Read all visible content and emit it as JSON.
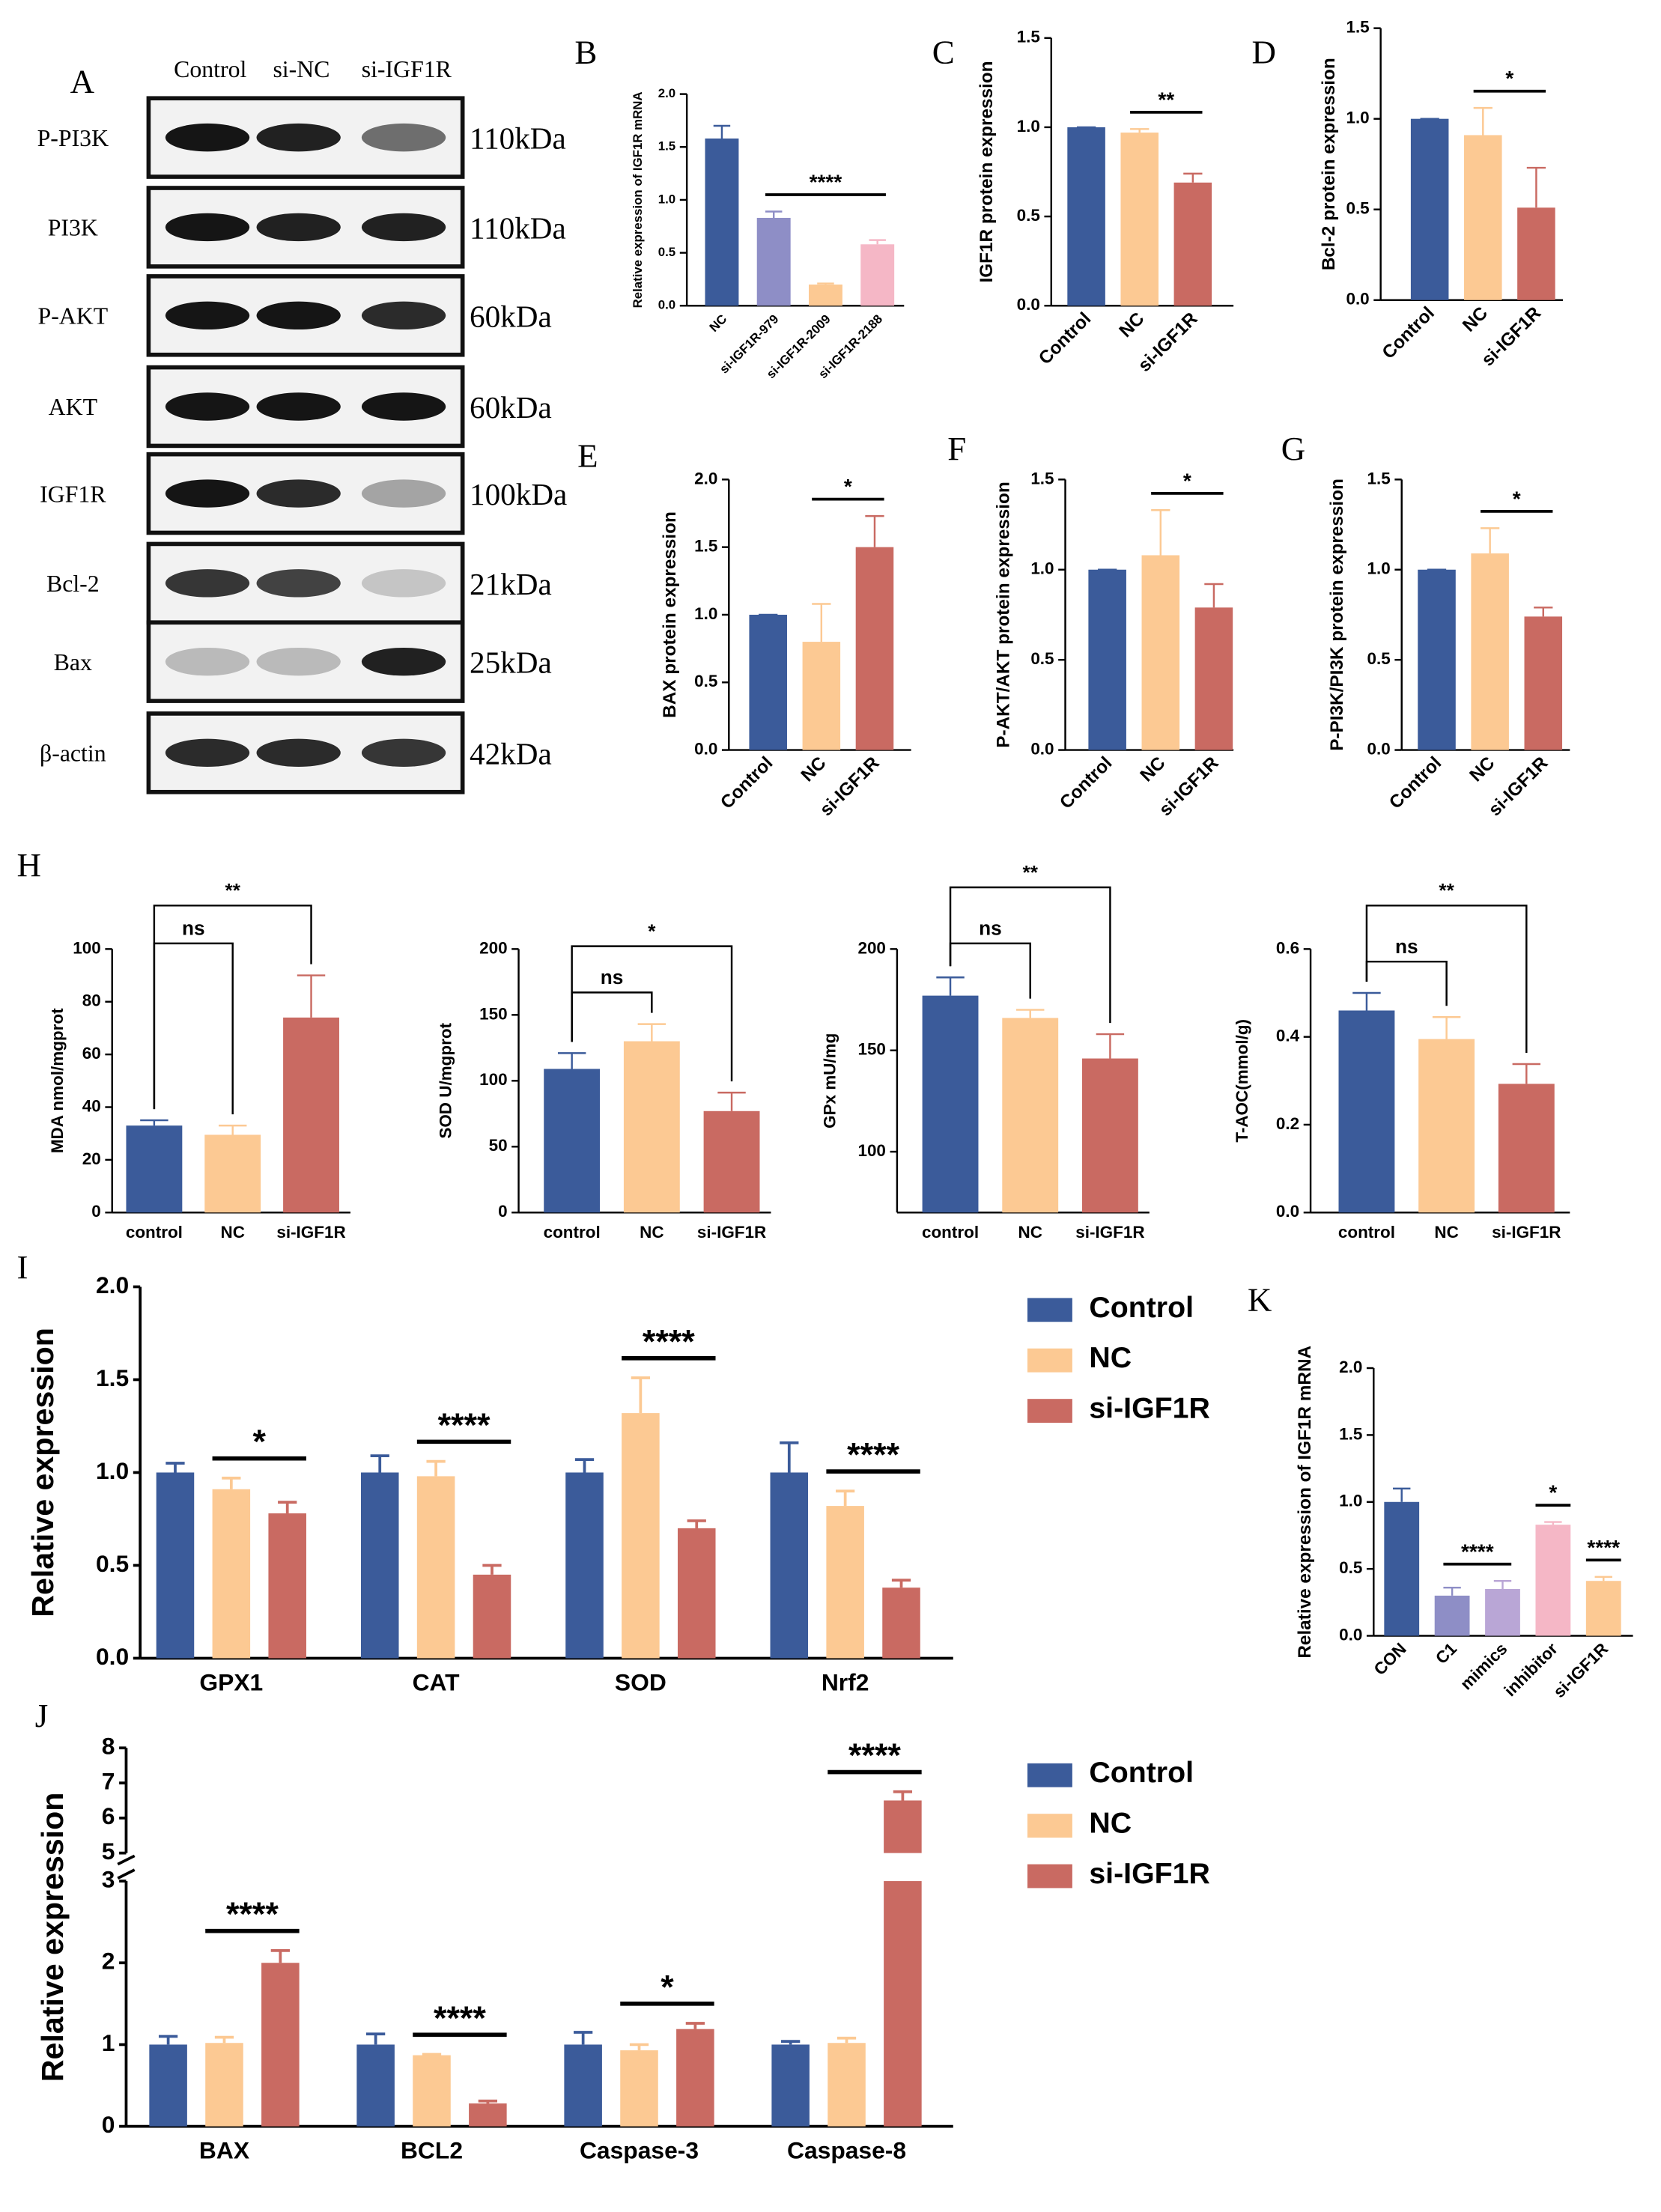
{
  "blot": {
    "label": "A",
    "columns": [
      "Control",
      "si-NC",
      "si-IGF1R"
    ],
    "rows": [
      {
        "name": "P-PI3K",
        "size": "110kDa"
      },
      {
        "name": "PI3K",
        "size": "110kDa"
      },
      {
        "name": "P-AKT",
        "size": "60kDa"
      },
      {
        "name": "AKT",
        "size": "60kDa"
      },
      {
        "name": "IGF1R",
        "size": "100kDa"
      },
      {
        "name": "Bcl-2",
        "size": "21kDa"
      },
      {
        "name": "Bax",
        "size": "25kDa"
      },
      {
        "name": "β-actin",
        "size": "42kDa"
      }
    ]
  },
  "chart_data": [
    {
      "type": "bar",
      "label": "B",
      "ylabel": "Relative expression of IGF1R mRNA",
      "categories": [
        "NC",
        "si-IGF1R-979",
        "si-IGF1R-2009",
        "si-IGF1R-2188"
      ],
      "values": [
        1.58,
        0.83,
        0.2,
        0.58
      ],
      "errors": [
        0.12,
        0.06,
        0.01,
        0.04
      ],
      "colors": [
        "#3b5b9a",
        "#8e8ec6",
        "#fcc993",
        "#f5b7c6"
      ],
      "ylim": [
        0,
        2
      ],
      "yticks": [
        {
          "value": 0,
          "label": "0.0"
        },
        {
          "value": 0.5,
          "label": "0.5"
        },
        {
          "value": 1,
          "label": "1.0"
        },
        {
          "value": 1.5,
          "label": "1.5"
        },
        {
          "value": 2,
          "label": "2.0"
        }
      ],
      "sig": [
        {
          "from": 1,
          "to": 3,
          "label": "****"
        }
      ]
    },
    {
      "type": "bar",
      "label": "C",
      "ylabel": "IGF1R protein expression",
      "categories": [
        "Control",
        "NC",
        "si-IGF1R"
      ],
      "values": [
        1.0,
        0.97,
        0.69
      ],
      "errors": [
        0,
        0.02,
        0.05
      ],
      "colors": [
        "#3b5b9a",
        "#fcc993",
        "#c96a62"
      ],
      "ylim": [
        0,
        1.5
      ],
      "yticks": [
        {
          "value": 0,
          "label": "0.0"
        },
        {
          "value": 0.5,
          "label": "0.5"
        },
        {
          "value": 1,
          "label": "1.0"
        },
        {
          "value": 1.5,
          "label": "1.5"
        }
      ],
      "sig": [
        {
          "from": 1,
          "to": 2,
          "label": "**"
        }
      ]
    },
    {
      "type": "bar",
      "label": "D",
      "ylabel": "Bcl-2 protein expression",
      "categories": [
        "Control",
        "NC",
        "si-IGF1R"
      ],
      "values": [
        1.0,
        0.91,
        0.51
      ],
      "errors": [
        0,
        0.15,
        0.22
      ],
      "colors": [
        "#3b5b9a",
        "#fcc993",
        "#c96a62"
      ],
      "ylim": [
        0,
        1.5
      ],
      "yticks": [
        {
          "value": 0,
          "label": "0.0"
        },
        {
          "value": 0.5,
          "label": "0.5"
        },
        {
          "value": 1,
          "label": "1.0"
        },
        {
          "value": 1.5,
          "label": "1.5"
        }
      ],
      "sig": [
        {
          "from": 1,
          "to": 2,
          "label": "*"
        }
      ]
    },
    {
      "type": "bar",
      "label": "E",
      "ylabel": "BAX protein expression",
      "categories": [
        "Control",
        "NC",
        "si-IGF1R"
      ],
      "values": [
        1.0,
        0.8,
        1.5
      ],
      "errors": [
        0,
        0.28,
        0.23
      ],
      "colors": [
        "#3b5b9a",
        "#fcc993",
        "#c96a62"
      ],
      "ylim": [
        0,
        2
      ],
      "yticks": [
        {
          "value": 0,
          "label": "0.0"
        },
        {
          "value": 0.5,
          "label": "0.5"
        },
        {
          "value": 1,
          "label": "1.0"
        },
        {
          "value": 1.5,
          "label": "1.5"
        },
        {
          "value": 2,
          "label": "2.0"
        }
      ],
      "sig": [
        {
          "from": 1,
          "to": 2,
          "label": "*"
        }
      ]
    },
    {
      "type": "bar",
      "label": "F",
      "ylabel": "P-AKT/AKT  protein expression",
      "categories": [
        "Control",
        "NC",
        "si-IGF1R"
      ],
      "values": [
        1.0,
        1.08,
        0.79
      ],
      "errors": [
        0,
        0.25,
        0.13
      ],
      "colors": [
        "#3b5b9a",
        "#fcc993",
        "#c96a62"
      ],
      "ylim": [
        0,
        1.5
      ],
      "yticks": [
        {
          "value": 0,
          "label": "0.0"
        },
        {
          "value": 0.5,
          "label": "0.5"
        },
        {
          "value": 1,
          "label": "1.0"
        },
        {
          "value": 1.5,
          "label": "1.5"
        }
      ],
      "sig": [
        {
          "from": 1,
          "to": 2,
          "label": "*"
        }
      ]
    },
    {
      "type": "bar",
      "label": "G",
      "ylabel": "P-PI3K/PI3K protein expression",
      "categories": [
        "Control",
        "NC",
        "si-IGF1R"
      ],
      "values": [
        1.0,
        1.09,
        0.74
      ],
      "errors": [
        0,
        0.14,
        0.05
      ],
      "colors": [
        "#3b5b9a",
        "#fcc993",
        "#c96a62"
      ],
      "ylim": [
        0,
        1.5
      ],
      "yticks": [
        {
          "value": 0,
          "label": "0.0"
        },
        {
          "value": 0.5,
          "label": "0.5"
        },
        {
          "value": 1,
          "label": "1.0"
        },
        {
          "value": 1.5,
          "label": "1.5"
        }
      ],
      "sig": [
        {
          "from": 1,
          "to": 2,
          "label": "*"
        }
      ]
    },
    {
      "type": "bar",
      "label": "H",
      "ylabel": "MDA nmol/mgprot",
      "categories": [
        "control",
        "NC",
        "si-IGF1R"
      ],
      "values": [
        33,
        29.5,
        74
      ],
      "errors": [
        2,
        3.5,
        16
      ],
      "colors": [
        "#3b5b9a",
        "#fcc993",
        "#c96a62"
      ],
      "ylim": [
        0,
        100
      ],
      "yticks": [
        0,
        20,
        40,
        60,
        80,
        100
      ],
      "brackets": true,
      "sig": [
        {
          "from": 0,
          "to": 1,
          "label": "ns"
        },
        {
          "from": 0,
          "to": 2,
          "label": "**"
        }
      ]
    },
    {
      "type": "bar",
      "ylabel": "SOD U/mgprot",
      "categories": [
        "control",
        "NC",
        "si-IGF1R"
      ],
      "values": [
        109,
        130,
        77
      ],
      "errors": [
        12,
        13,
        14
      ],
      "colors": [
        "#3b5b9a",
        "#fcc993",
        "#c96a62"
      ],
      "ylim": [
        0,
        200
      ],
      "yticks": [
        0,
        50,
        100,
        150,
        200
      ],
      "brackets": true,
      "sig": [
        {
          "from": 0,
          "to": 1,
          "label": "ns"
        },
        {
          "from": 0,
          "to": 2,
          "label": "*"
        }
      ]
    },
    {
      "type": "bar",
      "ylabel": "GPx mU/mg",
      "categories": [
        "control",
        "NC",
        "si-IGF1R"
      ],
      "values": [
        177,
        166,
        146
      ],
      "errors": [
        9,
        4,
        12
      ],
      "colors": [
        "#3b5b9a",
        "#fcc993",
        "#c96a62"
      ],
      "ylim": [
        70,
        200
      ],
      "yticks": [
        100,
        150,
        200
      ],
      "brackets": true,
      "sig": [
        {
          "from": 0,
          "to": 1,
          "label": "ns"
        },
        {
          "from": 0,
          "to": 2,
          "label": "**"
        }
      ]
    },
    {
      "type": "bar",
      "ylabel": "T-AOC(mmol/g)",
      "categories": [
        "control",
        "NC",
        "si-IGF1R"
      ],
      "values": [
        0.46,
        0.395,
        0.293
      ],
      "errors": [
        0.04,
        0.05,
        0.045
      ],
      "colors": [
        "#3b5b9a",
        "#fcc993",
        "#c96a62"
      ],
      "ylim": [
        0,
        0.6
      ],
      "yticks": [
        {
          "value": 0,
          "label": "0.0"
        },
        {
          "value": 0.2,
          "label": "0.2"
        },
        {
          "value": 0.4,
          "label": "0.4"
        },
        {
          "value": 0.6,
          "label": "0.6"
        }
      ],
      "brackets": true,
      "sig": [
        {
          "from": 0,
          "to": 1,
          "label": "ns"
        },
        {
          "from": 0,
          "to": 2,
          "label": "**"
        }
      ]
    },
    {
      "type": "grouped_bar",
      "label": "I",
      "ylabel": "Relative expression",
      "categories": [
        "GPX1",
        "CAT",
        "SOD",
        "Nrf2"
      ],
      "series": [
        {
          "name": "Control",
          "color": "#3b5b9a",
          "values": [
            1.0,
            1.0,
            1.0,
            1.0
          ],
          "errors": [
            0.05,
            0.09,
            0.07,
            0.16
          ]
        },
        {
          "name": "NC",
          "color": "#fcc993",
          "values": [
            0.91,
            0.98,
            1.32,
            0.82
          ],
          "errors": [
            0.06,
            0.08,
            0.19,
            0.08
          ]
        },
        {
          "name": "si-IGF1R",
          "color": "#c96a62",
          "values": [
            0.78,
            0.45,
            0.7,
            0.38
          ],
          "errors": [
            0.06,
            0.05,
            0.04,
            0.04
          ]
        }
      ],
      "ylim": [
        0,
        2
      ],
      "yticks": [
        {
          "value": 0,
          "label": "0.0"
        },
        {
          "value": 0.5,
          "label": "0.5"
        },
        {
          "value": 1,
          "label": "1.0"
        },
        {
          "value": 1.5,
          "label": "1.5"
        },
        {
          "value": 2,
          "label": "2.0"
        }
      ],
      "sig": [
        {
          "category": 0,
          "from": 1,
          "to": 2,
          "label": "*"
        },
        {
          "category": 1,
          "from": 1,
          "to": 2,
          "label": "****"
        },
        {
          "category": 2,
          "from": 1,
          "to": 2,
          "label": "****"
        },
        {
          "category": 3,
          "from": 1,
          "to": 2,
          "label": "****"
        }
      ]
    },
    {
      "type": "grouped_bar",
      "label": "J",
      "ylabel": "Relative expression",
      "categories": [
        "BAX",
        "BCL2",
        "Caspase-3",
        "Caspase-8"
      ],
      "series": [
        {
          "name": "Control",
          "color": "#3b5b9a",
          "values": [
            1.0,
            1.0,
            1.0,
            1.0
          ],
          "errors": [
            0.1,
            0.13,
            0.15,
            0.04
          ]
        },
        {
          "name": "NC",
          "color": "#fcc993",
          "values": [
            1.02,
            0.87,
            0.93,
            1.02
          ],
          "errors": [
            0.07,
            0.01,
            0.07,
            0.06
          ]
        },
        {
          "name": "si-IGF1R",
          "color": "#c96a62",
          "values": [
            2.0,
            0.28,
            1.19,
            6.5
          ],
          "errors": [
            0.15,
            0.03,
            0.07,
            0.25
          ]
        }
      ],
      "ylim": [
        0,
        8
      ],
      "break": [
        3,
        5
      ],
      "yticks": [
        0,
        1,
        2,
        3,
        5,
        6,
        7,
        8
      ],
      "sig": [
        {
          "category": 0,
          "from": 1,
          "to": 2,
          "label": "****"
        },
        {
          "category": 1,
          "from": 1,
          "to": 2,
          "label": "****"
        },
        {
          "category": 2,
          "from": 1,
          "to": 2,
          "label": "*"
        },
        {
          "category": 3,
          "from": 1,
          "to": 2,
          "label": "****"
        }
      ]
    },
    {
      "type": "bar",
      "label": "K",
      "ylabel": "Relative expression of IGF1R mRNA",
      "categories": [
        "CON",
        "C1",
        "mimics",
        "inhibitor",
        "si-IGF1R"
      ],
      "values": [
        1.0,
        0.3,
        0.35,
        0.83,
        0.41
      ],
      "errors": [
        0.1,
        0.06,
        0.06,
        0.02,
        0.03
      ],
      "colors": [
        "#3b5b9a",
        "#8e8ec6",
        "#b9a6d6",
        "#f5b7c6",
        "#fcc993"
      ],
      "ylim": [
        0,
        2
      ],
      "yticks": [
        {
          "value": 0,
          "label": "0.0"
        },
        {
          "value": 0.5,
          "label": "0.5"
        },
        {
          "value": 1,
          "label": "1.0"
        },
        {
          "value": 1.5,
          "label": "1.5"
        },
        {
          "value": 2,
          "label": "2.0"
        }
      ],
      "sig": [
        {
          "from": 1,
          "to": 2,
          "label": "****"
        },
        {
          "from": 3,
          "to": 3,
          "label": "*"
        },
        {
          "from": 4,
          "to": 4,
          "label": "****"
        }
      ]
    }
  ]
}
